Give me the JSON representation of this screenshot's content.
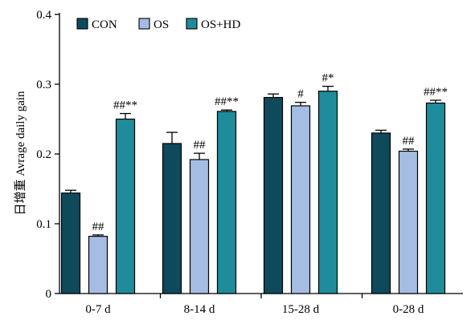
{
  "chart_data": {
    "type": "bar",
    "ylabel": "日增重 Avrage daily gain",
    "ylim": [
      0,
      0.4
    ],
    "yticks": [
      0,
      0.1,
      0.2,
      0.3,
      0.4
    ],
    "ytick_labels": [
      "0",
      "0.1",
      "0.2",
      "0.3",
      "0.4"
    ],
    "categories": [
      "0-7 d",
      "8-14 d",
      "15-28 d",
      "0-28 d"
    ],
    "legend_position": "top-left",
    "grid": false,
    "series": [
      {
        "name": "CON",
        "color": "#0f4a5c",
        "values": [
          0.144,
          0.215,
          0.281,
          0.23
        ],
        "errors": [
          0.004,
          0.016,
          0.005,
          0.004
        ],
        "annotations": [
          "",
          "",
          "",
          ""
        ]
      },
      {
        "name": "OS",
        "color": "#a6bde3",
        "values": [
          0.082,
          0.192,
          0.269,
          0.204
        ],
        "errors": [
          0.002,
          0.009,
          0.005,
          0.003
        ],
        "annotations": [
          "##",
          "##",
          "#",
          "##"
        ]
      },
      {
        "name": "OS+HD",
        "color": "#1e8c9a",
        "values": [
          0.25,
          0.261,
          0.29,
          0.273
        ],
        "errors": [
          0.008,
          0.002,
          0.007,
          0.004
        ],
        "annotations": [
          "##**",
          "##**",
          "#*",
          "##**"
        ]
      }
    ]
  }
}
